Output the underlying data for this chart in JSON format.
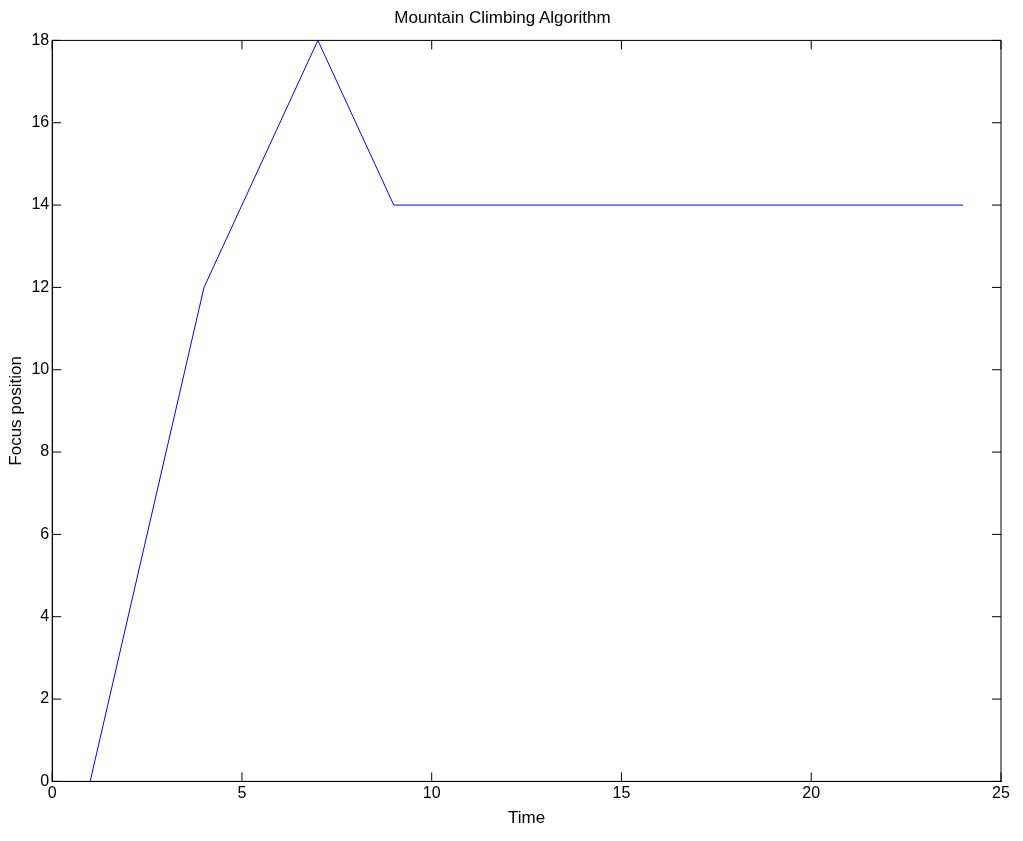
{
  "chart_data": {
    "type": "line",
    "title": "Mountain Climbing Algorithm",
    "xlabel": "Time",
    "ylabel": "Focus position",
    "x": [
      1,
      4,
      7,
      9,
      24
    ],
    "series": [
      {
        "color": "#0000ff",
        "values": [
          0,
          12,
          18,
          14,
          14
        ]
      }
    ],
    "xlim": [
      0,
      25
    ],
    "xticks": [
      0,
      5,
      10,
      15,
      20,
      25
    ],
    "ylim": [
      0,
      18
    ],
    "yticks": [
      0,
      2,
      4,
      6,
      8,
      10,
      12,
      14,
      16,
      18
    ],
    "grid": false,
    "legend": false,
    "marker": "none",
    "line_style": "solid"
  }
}
